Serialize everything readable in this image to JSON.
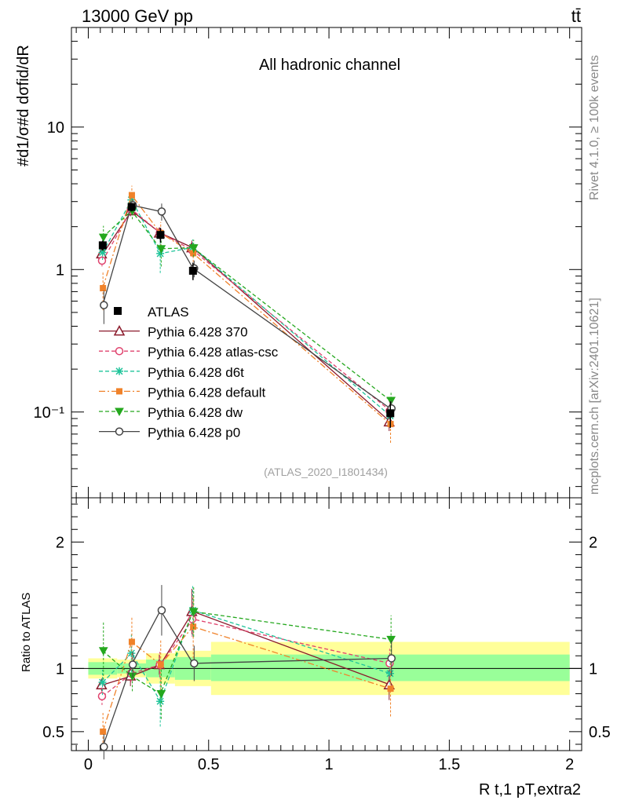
{
  "header": {
    "left": "13000 GeV pp",
    "right": "tt̄"
  },
  "side_labels": {
    "rivet": "Rivet 4.1.0, ≥ 100k events",
    "source": "mcplots.cern.ch [arXiv:2401.10621]"
  },
  "chart_data": {
    "type": "scatter",
    "title": "All hadronic channel",
    "analysis_tag": "(ATLAS_2020_I1801434)",
    "ylabel_main": "#d1/σ#d dσfid/dR",
    "ylabel_ratio": "Ratio to ATLAS",
    "xlabel": "R t,1 pT,extra2",
    "xlim": [
      -0.07,
      2.05
    ],
    "ylim_main": [
      0.025,
      50
    ],
    "ylim_ratio": [
      0.35,
      2.35
    ],
    "x_ticks": [
      0,
      0.5,
      1,
      1.5,
      2
    ],
    "x_tick_labels": [
      "0",
      "0.5",
      "1",
      "1.5",
      "2"
    ],
    "y_ticks_main": [
      0.1,
      1,
      10
    ],
    "y_tick_labels_main": [
      "10⁻¹",
      "1",
      "10"
    ],
    "y_ticks_ratio": [
      0.5,
      1,
      2
    ],
    "y_tick_labels_ratio": [
      "0.5",
      "1",
      "2"
    ],
    "bins": [
      [
        0,
        0.12
      ],
      [
        0.12,
        0.24
      ],
      [
        0.24,
        0.36
      ],
      [
        0.36,
        0.51
      ],
      [
        0.51,
        2.0
      ]
    ],
    "x": [
      0.06,
      0.18,
      0.3,
      0.435,
      1.255
    ],
    "data": {
      "name": "ATLAS",
      "values": [
        1.48,
        2.75,
        1.75,
        0.98,
        0.098
      ],
      "band_inner": [
        [
          0.95,
          1.05
        ],
        [
          0.96,
          1.04
        ],
        [
          0.93,
          1.07
        ],
        [
          0.91,
          1.09
        ],
        [
          0.9,
          1.11
        ]
      ],
      "band_outer": [
        [
          0.92,
          1.08
        ],
        [
          0.93,
          1.07
        ],
        [
          0.88,
          1.12
        ],
        [
          0.86,
          1.14
        ],
        [
          0.79,
          1.21
        ]
      ]
    },
    "series": [
      {
        "name": "Pythia 6.428 370",
        "color": "#8b1a2b",
        "marker": "triangle-open",
        "dash": "solid",
        "ratio": [
          0.87,
          0.94,
          1.03,
          1.45,
          0.87
        ],
        "ratio_err": [
          0.05,
          0.08,
          0.08,
          0.18,
          0.12
        ]
      },
      {
        "name": "Pythia 6.428 atlas-csc",
        "color": "#e0436e",
        "marker": "circle-open",
        "dash": "short",
        "ratio": [
          0.78,
          0.96,
          1.03,
          1.39,
          1.04
        ],
        "ratio_err": [
          0.07,
          0.07,
          0.1,
          0.14,
          0.12
        ]
      },
      {
        "name": "Pythia 6.428 d6t",
        "color": "#1fc49a",
        "marker": "star",
        "dash": "short",
        "ratio": [
          0.89,
          1.12,
          0.74,
          1.46,
          0.96
        ],
        "ratio_err": [
          0.1,
          0.15,
          0.2,
          0.2,
          0.12
        ]
      },
      {
        "name": "Pythia 6.428 default",
        "color": "#f0822a",
        "marker": "square",
        "dash": "dashdot",
        "ratio": [
          0.5,
          1.21,
          1.03,
          1.33,
          0.84
        ],
        "ratio_err": [
          0.15,
          0.2,
          0.2,
          0.25,
          0.22
        ]
      },
      {
        "name": "Pythia 6.428 dw",
        "color": "#25a81e",
        "marker": "triangle-down",
        "dash": "short",
        "ratio": [
          1.14,
          0.94,
          0.8,
          1.45,
          1.23
        ],
        "ratio_err": [
          0.23,
          0.12,
          0.2,
          0.2,
          0.19
        ]
      },
      {
        "name": "Pythia 6.428 p0",
        "color": "#444444",
        "marker": "circle-open",
        "dash": "solid",
        "ratio": [
          0.38,
          1.03,
          1.46,
          1.04,
          1.08
        ],
        "ratio_err": [
          0.1,
          0.1,
          0.2,
          0.14,
          0.14
        ]
      }
    ]
  }
}
